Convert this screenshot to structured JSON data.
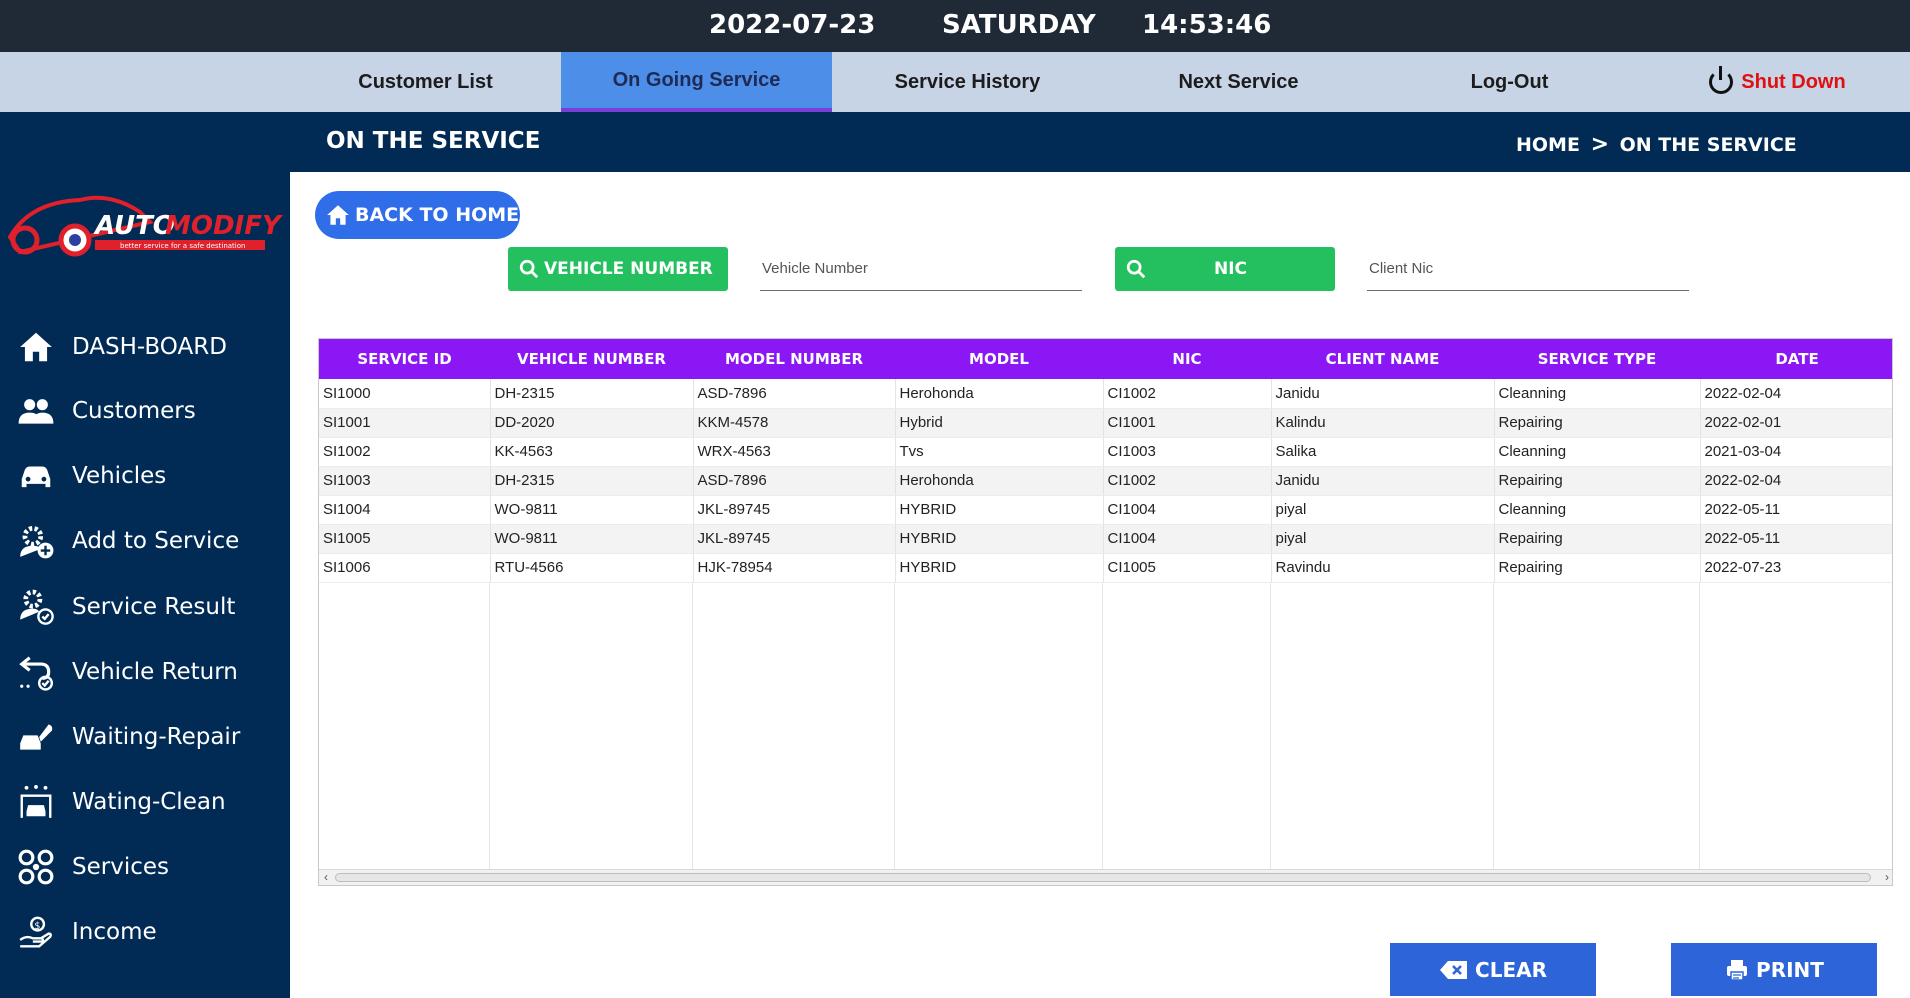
{
  "topbar": {
    "date": "2022-07-23",
    "day": "SATURDAY",
    "time": "14:53:46"
  },
  "nav": {
    "tabs": [
      {
        "label": "Customer List"
      },
      {
        "label": "On Going Service"
      },
      {
        "label": "Service History"
      },
      {
        "label": "Next Service"
      },
      {
        "label": "Log-Out"
      }
    ],
    "shutdown_label": "Shut Down"
  },
  "logo": {
    "text_auto": "AUTO",
    "text_modify": "MODIFY",
    "tagline": "better service for a safe destination"
  },
  "sidebar": {
    "items": [
      {
        "label": "DASH-BOARD",
        "icon": "home-icon"
      },
      {
        "label": "Customers",
        "icon": "users-icon"
      },
      {
        "label": "Vehicles",
        "icon": "car-icon"
      },
      {
        "label": "Add to Service",
        "icon": "gear-add-icon"
      },
      {
        "label": "Service Result",
        "icon": "gear-check-icon"
      },
      {
        "label": "Vehicle Return",
        "icon": "return-arrow-icon"
      },
      {
        "label": "Waiting-Repair",
        "icon": "wrench-car-icon"
      },
      {
        "label": "Wating-Clean",
        "icon": "car-wash-icon"
      },
      {
        "label": "Services",
        "icon": "services-grid-icon"
      },
      {
        "label": "Income",
        "icon": "income-hand-icon"
      }
    ]
  },
  "header": {
    "title": "ON THE SERVICE",
    "breadcrumb_home": "HOME",
    "breadcrumb_sep": ">",
    "breadcrumb_current": "ON THE SERVICE"
  },
  "back_button": {
    "label": "BACK TO HOME"
  },
  "search": {
    "vehicle_button": "VEHICLE NUMBER",
    "vehicle_placeholder": "Vehicle Number",
    "nic_button": "NIC",
    "nic_placeholder": "Client Nic"
  },
  "table": {
    "columns": [
      "SERVICE ID",
      "VEHICLE NUMBER",
      "MODEL NUMBER",
      "MODEL",
      "NIC",
      "CLIENT NAME",
      "SERVICE TYPE",
      "DATE"
    ],
    "rows": [
      [
        "SI1000",
        "DH-2315",
        "ASD-7896",
        "Herohonda",
        "CI1002",
        "Janidu",
        "Cleanning",
        "2022-02-04"
      ],
      [
        "SI1001",
        "DD-2020",
        "KKM-4578",
        "Hybrid",
        "CI1001",
        "Kalindu",
        "Repairing",
        "2022-02-01"
      ],
      [
        "SI1002",
        "KK-4563",
        "WRX-4563",
        "Tvs",
        "CI1003",
        "Salika",
        "Cleanning",
        "2021-03-04"
      ],
      [
        "SI1003",
        "DH-2315",
        "ASD-7896",
        "Herohonda",
        "CI1002",
        "Janidu",
        "Repairing",
        "2022-02-04"
      ],
      [
        "SI1004",
        "WO-9811",
        "JKL-89745",
        "HYBRID",
        "CI1004",
        "piyal",
        "Cleanning",
        "2022-05-11"
      ],
      [
        "SI1005",
        "WO-9811",
        "JKL-89745",
        "HYBRID",
        "CI1004",
        "piyal",
        "Repairing",
        "2022-05-11"
      ],
      [
        "SI1006",
        "RTU-4566",
        "HJK-78954",
        "HYBRID",
        "CI1005",
        "Ravindu",
        "Repairing",
        "2022-07-23"
      ]
    ]
  },
  "actions": {
    "clear_label": "CLEAR",
    "print_label": "PRINT"
  },
  "colors": {
    "sidebar": "#012b55",
    "table_header": "#8b17f5",
    "green": "#24c05f",
    "blue": "#2f6ee8",
    "shutdown": "#e01010"
  }
}
